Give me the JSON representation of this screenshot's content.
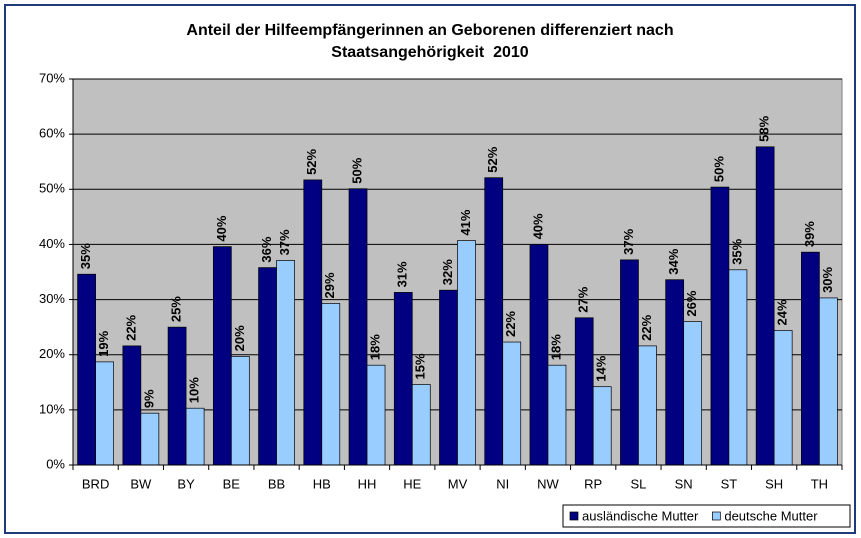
{
  "chart_data": {
    "type": "bar",
    "title": "Anteil der Hilfeempfängerinnen an Geborenen differenziert nach Staatsangehörigkeit  2010",
    "categories": [
      "BRD",
      "BW",
      "BY",
      "BE",
      "BB",
      "HB",
      "HH",
      "HE",
      "MV",
      "NI",
      "NW",
      "RP",
      "SL",
      "SN",
      "ST",
      "SH",
      "TH"
    ],
    "series": [
      {
        "name": "ausländische Mutter",
        "color": "#000080",
        "values": [
          34.6,
          21.6,
          25.0,
          39.6,
          35.8,
          51.7,
          50.1,
          31.3,
          31.7,
          52.1,
          40.0,
          26.7,
          37.2,
          33.6,
          50.4,
          57.7,
          38.6
        ],
        "value_labels": [
          "35%",
          "22%",
          "25%",
          "40%",
          "36%",
          "52%",
          "50%",
          "31%",
          "32%",
          "52%",
          "40%",
          "27%",
          "37%",
          "34%",
          "50%",
          "58%",
          "39%"
        ]
      },
      {
        "name": "deutsche Mutter",
        "color": "#99ccff",
        "values": [
          18.7,
          9.4,
          10.3,
          19.7,
          37.1,
          29.3,
          18.1,
          14.6,
          40.7,
          22.3,
          18.1,
          14.2,
          21.6,
          26.0,
          35.4,
          24.4,
          30.3
        ],
        "value_labels": [
          "19%",
          "9%",
          "10%",
          "20%",
          "37%",
          "29%",
          "18%",
          "15%",
          "41%",
          "22%",
          "18%",
          "14%",
          "22%",
          "26%",
          "35%",
          "24%",
          "30%"
        ]
      }
    ],
    "ylim": [
      0,
      70
    ],
    "yticks": [
      {
        "value": 0,
        "label": "0%"
      },
      {
        "value": 10,
        "label": "10%"
      },
      {
        "value": 20,
        "label": "20%"
      },
      {
        "value": 30,
        "label": "30%"
      },
      {
        "value": 40,
        "label": "40%"
      },
      {
        "value": 50,
        "label": "50%"
      },
      {
        "value": 60,
        "label": "60%"
      },
      {
        "value": 70,
        "label": "70%"
      }
    ],
    "grid": true,
    "legend": "bottom-right",
    "plot_background": "#c0c0c0"
  }
}
